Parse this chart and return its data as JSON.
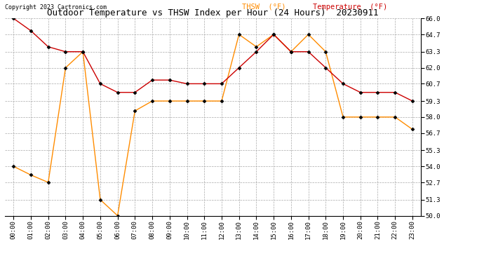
{
  "title": "Outdoor Temperature vs THSW Index per Hour (24 Hours)  20230911",
  "copyright": "Copyright 2023 Cartronics.com",
  "legend_thsw": "THSW  (°F)",
  "legend_temp": "Temperature  (°F)",
  "hours": [
    "00:00",
    "01:00",
    "02:00",
    "03:00",
    "04:00",
    "05:00",
    "06:00",
    "07:00",
    "08:00",
    "09:00",
    "10:00",
    "11:00",
    "12:00",
    "13:00",
    "14:00",
    "15:00",
    "16:00",
    "17:00",
    "18:00",
    "19:00",
    "20:00",
    "21:00",
    "22:00",
    "23:00"
  ],
  "temperature": [
    66.0,
    65.0,
    63.7,
    63.3,
    63.3,
    60.7,
    60.0,
    60.0,
    61.0,
    61.0,
    60.7,
    60.7,
    60.7,
    62.0,
    63.3,
    64.7,
    63.3,
    63.3,
    62.0,
    60.7,
    60.0,
    60.0,
    60.0,
    59.3
  ],
  "thsw": [
    54.0,
    53.3,
    52.7,
    62.0,
    63.3,
    51.3,
    50.0,
    58.5,
    59.3,
    59.3,
    59.3,
    59.3,
    59.3,
    64.7,
    63.7,
    64.7,
    63.3,
    64.7,
    63.3,
    58.0,
    58.0,
    58.0,
    58.0,
    57.0
  ],
  "thsw_color": "#FF8C00",
  "temp_color": "#CC0000",
  "background_color": "#ffffff",
  "grid_color": "#aaaaaa",
  "ylim_min": 50.0,
  "ylim_max": 66.0,
  "yticks": [
    50.0,
    51.3,
    52.7,
    54.0,
    55.3,
    56.7,
    58.0,
    59.3,
    60.7,
    62.0,
    63.3,
    64.7,
    66.0
  ],
  "title_fontsize": 9,
  "copyright_fontsize": 6,
  "legend_fontsize": 7.5,
  "axis_fontsize": 6.5
}
